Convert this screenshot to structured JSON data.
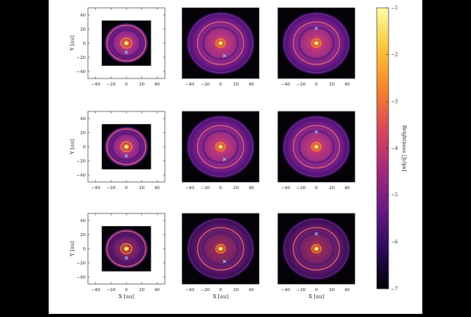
{
  "chart_data": {
    "type": "heatmap",
    "rows": 3,
    "cols": 3,
    "xlabel": "X [au]",
    "ylabel": "Y [au]",
    "xticks": [
      "−40",
      "−20",
      "0",
      "20",
      "40"
    ],
    "yticks": [
      "40",
      "20",
      "0",
      "−20",
      "−40"
    ],
    "xlim": [
      -50,
      50
    ],
    "ylim": [
      -50,
      50
    ],
    "colorbar": {
      "label": "Brightness [Jy/px]",
      "ticks": [
        "−1",
        "−2",
        "−3",
        "−4",
        "−5",
        "−6",
        "−7"
      ],
      "range": [
        -7,
        -1
      ],
      "colors": [
        "#000004",
        "#2c0b5c",
        "#6b1a84",
        "#a52c7a",
        "#d9485a",
        "#f7852c",
        "#fcc53a",
        "#fcffa4"
      ]
    },
    "panels": [
      {
        "row": 0,
        "col": 0,
        "image_extent_au": 32,
        "disk_radius_au": 28,
        "ring_radii_au": [
          7,
          25
        ],
        "planet_markers_au": [
          [
            0,
            -13
          ]
        ]
      },
      {
        "row": 0,
        "col": 1,
        "image_extent_au": 50,
        "disk_radius_au": 44,
        "ring_radii_au": [
          6,
          30
        ],
        "planet_markers_au": [
          [
            5,
            -18
          ]
        ]
      },
      {
        "row": 0,
        "col": 2,
        "image_extent_au": 50,
        "disk_radius_au": 44,
        "ring_radii_au": [
          6,
          30
        ],
        "planet_markers_au": [
          [
            0,
            21
          ]
        ]
      },
      {
        "row": 1,
        "col": 0,
        "image_extent_au": 32,
        "disk_radius_au": 28,
        "ring_radii_au": [
          7,
          25
        ],
        "planet_markers_au": [
          [
            0,
            -13
          ]
        ]
      },
      {
        "row": 1,
        "col": 1,
        "image_extent_au": 50,
        "disk_radius_au": 44,
        "ring_radii_au": [
          6,
          30
        ],
        "planet_markers_au": [
          [
            5,
            -18
          ]
        ]
      },
      {
        "row": 1,
        "col": 2,
        "image_extent_au": 50,
        "disk_radius_au": 44,
        "ring_radii_au": [
          6,
          30
        ],
        "planet_markers_au": [
          [
            0,
            21
          ]
        ]
      },
      {
        "row": 2,
        "col": 0,
        "image_extent_au": 32,
        "disk_radius_au": 28,
        "ring_radii_au": [
          7,
          25
        ],
        "planet_markers_au": [
          [
            0,
            -13
          ]
        ]
      },
      {
        "row": 2,
        "col": 1,
        "image_extent_au": 50,
        "disk_radius_au": 44,
        "ring_radii_au": [
          6,
          30
        ],
        "planet_markers_au": [
          [
            5,
            -18
          ]
        ]
      },
      {
        "row": 2,
        "col": 2,
        "image_extent_au": 50,
        "disk_radius_au": 44,
        "ring_radii_au": [
          6,
          30
        ],
        "planet_markers_au": [
          [
            0,
            21
          ]
        ]
      }
    ]
  }
}
